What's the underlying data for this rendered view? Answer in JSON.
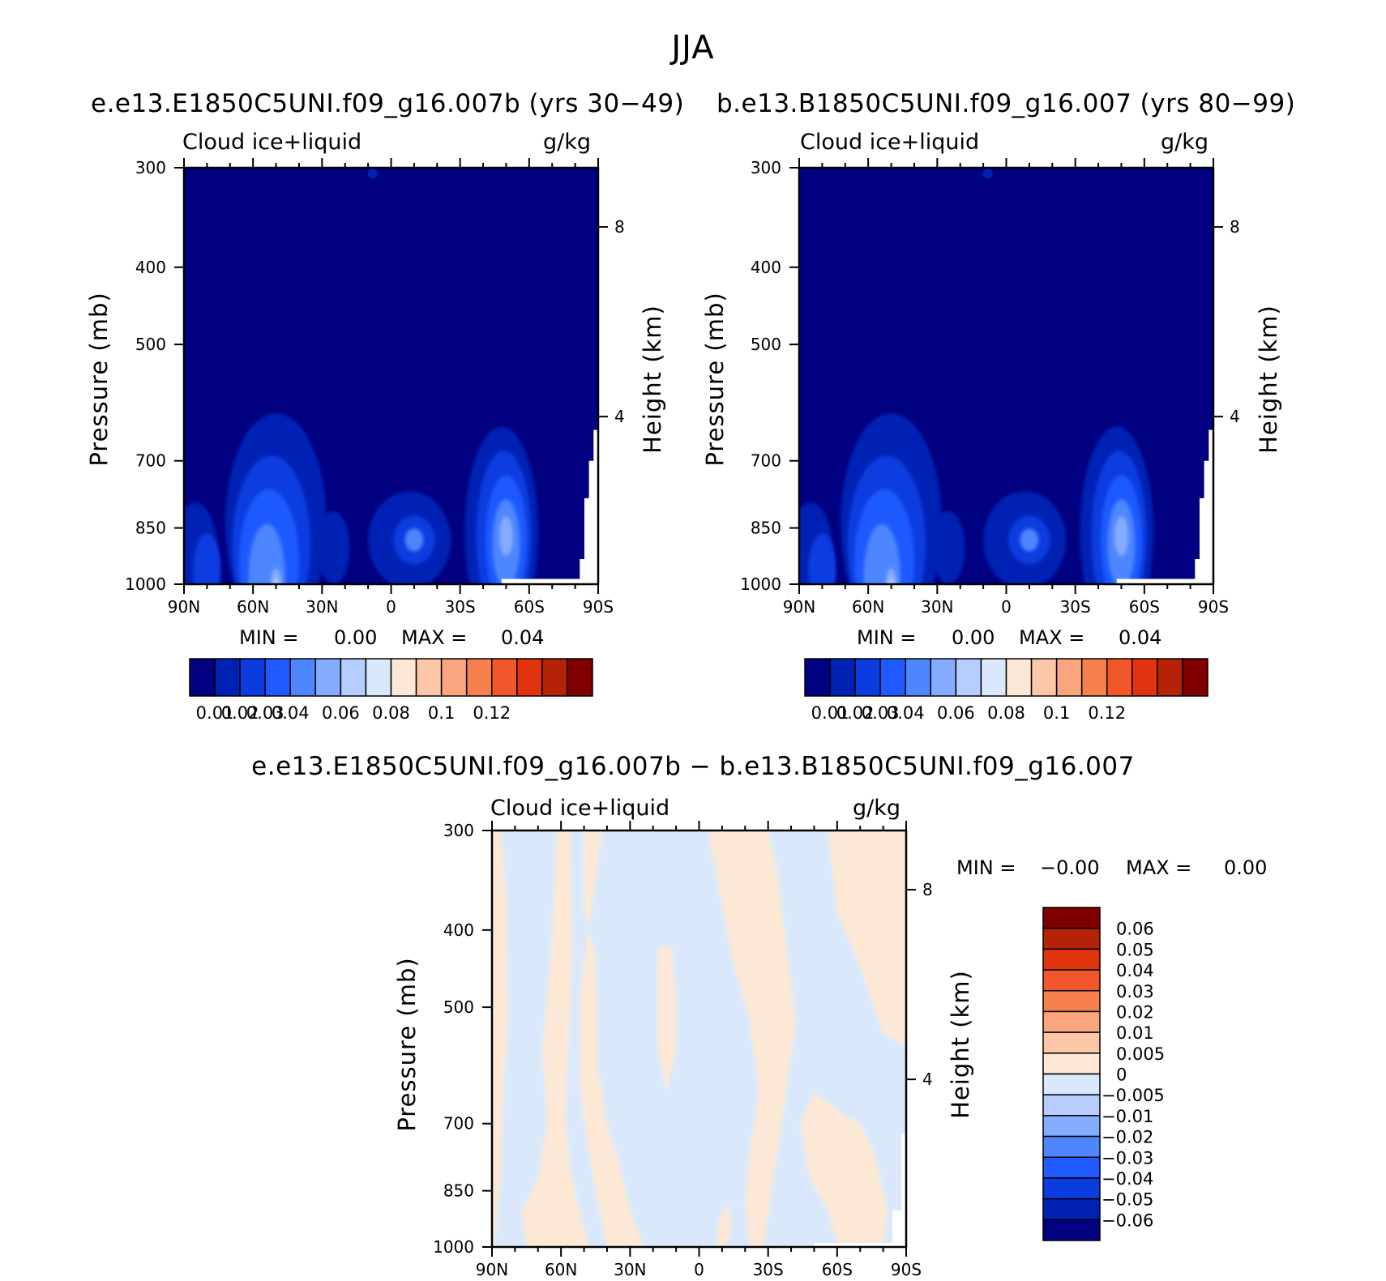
{
  "figure": {
    "title": "JJA"
  },
  "colors": {
    "abs_colormap": [
      "#000080",
      "#0022b4",
      "#0a3ce0",
      "#1e5aff",
      "#4d86ff",
      "#85abff",
      "#b6cdff",
      "#d9e9fb",
      "#fde8d6",
      "#fcc7a8",
      "#faa57e",
      "#f7804f",
      "#f2572b",
      "#e2330f",
      "#b42208",
      "#800000"
    ],
    "diff_colormap": [
      "#000080",
      "#0022b4",
      "#0a3ce0",
      "#1e5aff",
      "#4d86ff",
      "#85abff",
      "#b6cdff",
      "#d9e9fb",
      "#fde8d6",
      "#fcc7a8",
      "#faa57e",
      "#f7804f",
      "#f2572b",
      "#e2330f",
      "#b42208",
      "#800000"
    ]
  },
  "panels": [
    {
      "title": "e.e13.E1850C5UNI.f09_g16.007b (yrs 30−49)",
      "left_label": "Cloud ice+liquid",
      "right_label": "g/kg",
      "y_label": "Pressure (mb)",
      "y2_label": "Height (km)",
      "min_label": "MIN =",
      "min_value": "0.00",
      "max_label": "MAX =",
      "max_value": "0.04",
      "colorbar_ticks": [
        "0.01",
        "0.02",
        "0.03",
        "0.04",
        "0.06",
        "0.08",
        "0.1",
        "0.12"
      ]
    },
    {
      "title": "b.e13.B1850C5UNI.f09_g16.007 (yrs 80−99)",
      "left_label": "Cloud ice+liquid",
      "right_label": "g/kg",
      "y_label": "Pressure (mb)",
      "y2_label": "Height (km)",
      "min_label": "MIN =",
      "min_value": "0.00",
      "max_label": "MAX =",
      "max_value": "0.04",
      "colorbar_ticks": [
        "0.01",
        "0.02",
        "0.03",
        "0.04",
        "0.06",
        "0.08",
        "0.1",
        "0.12"
      ]
    },
    {
      "title": "e.e13.E1850C5UNI.f09_g16.007b − b.e13.B1850C5UNI.f09_g16.007",
      "left_label": "Cloud ice+liquid",
      "right_label": "g/kg",
      "y_label": "Pressure (mb)",
      "y2_label": "Height (km)",
      "min_label": "MIN =",
      "min_value": "−0.00",
      "max_label": "MAX =",
      "max_value": "0.00",
      "colorbar_ticks": [
        "0.06",
        "0.05",
        "0.04",
        "0.03",
        "0.02",
        "0.01",
        "0.005",
        "0",
        "−0.005",
        "−0.01",
        "−0.02",
        "−0.03",
        "−0.04",
        "−0.05",
        "−0.06"
      ]
    }
  ],
  "chart_data": [
    {
      "type": "heatmap",
      "title": "e.e13.E1850C5UNI.f09_g16.007b (yrs 30−49)",
      "xlabel": "",
      "ylabel": "Pressure (mb)",
      "y2label": "Height (km)",
      "x_ticks": [
        "90N",
        "60N",
        "30N",
        "0",
        "30S",
        "60S",
        "90S"
      ],
      "y_ticks": [
        "300",
        "400",
        "500",
        "700",
        "850",
        "1000"
      ],
      "y2_ticks": [
        "8",
        "4"
      ],
      "y_scale": "log",
      "ylim": [
        1000,
        300
      ],
      "contour_levels": [
        0.01,
        0.02,
        0.03,
        0.04,
        0.06,
        0.08,
        0.1,
        0.12
      ],
      "min": 0.0,
      "max": 0.04,
      "units": "g/kg"
    },
    {
      "type": "heatmap",
      "title": "b.e13.B1850C5UNI.f09_g16.007 (yrs 80−99)",
      "xlabel": "",
      "ylabel": "Pressure (mb)",
      "y2label": "Height (km)",
      "x_ticks": [
        "90N",
        "60N",
        "30N",
        "0",
        "30S",
        "60S",
        "90S"
      ],
      "y_ticks": [
        "300",
        "400",
        "500",
        "700",
        "850",
        "1000"
      ],
      "y2_ticks": [
        "8",
        "4"
      ],
      "y_scale": "log",
      "ylim": [
        1000,
        300
      ],
      "contour_levels": [
        0.01,
        0.02,
        0.03,
        0.04,
        0.06,
        0.08,
        0.1,
        0.12
      ],
      "min": 0.0,
      "max": 0.04,
      "units": "g/kg"
    },
    {
      "type": "heatmap",
      "title": "e.e13.E1850C5UNI.f09_g16.007b − b.e13.B1850C5UNI.f09_g16.007",
      "xlabel": "",
      "ylabel": "Pressure (mb)",
      "y2label": "Height (km)",
      "x_ticks": [
        "90N",
        "60N",
        "30N",
        "0",
        "30S",
        "60S",
        "90S"
      ],
      "y_ticks": [
        "300",
        "400",
        "500",
        "700",
        "850",
        "1000"
      ],
      "y2_ticks": [
        "8",
        "4"
      ],
      "y_scale": "log",
      "ylim": [
        1000,
        300
      ],
      "contour_levels": [
        -0.06,
        -0.05,
        -0.04,
        -0.03,
        -0.02,
        -0.01,
        -0.005,
        0,
        0.005,
        0.01,
        0.02,
        0.03,
        0.04,
        0.05,
        0.06
      ],
      "min": -0.0,
      "max": 0.0,
      "units": "g/kg"
    }
  ]
}
